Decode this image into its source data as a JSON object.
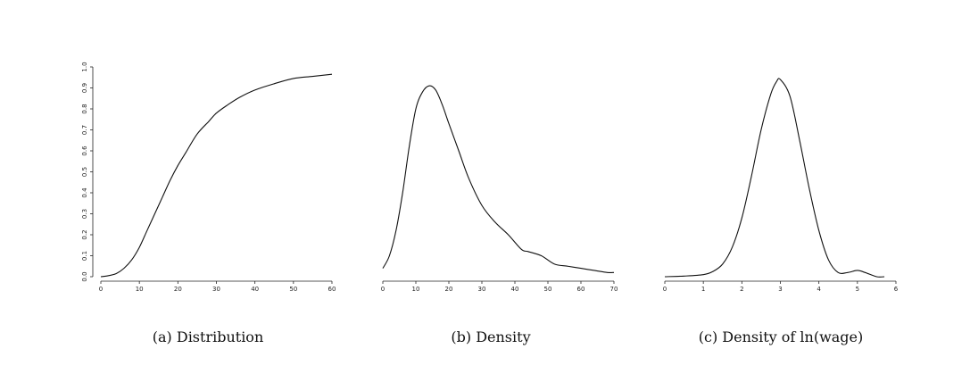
{
  "chart_data": [
    {
      "type": "line",
      "caption": "(a) Distribution",
      "xlim": [
        0,
        60
      ],
      "ylim": [
        0,
        1.0
      ],
      "x_ticks": [
        "0",
        "10",
        "20",
        "30",
        "40",
        "50",
        "60"
      ],
      "y_ticks": [
        "0.0",
        "0.1",
        "0.2",
        "0.3",
        "0.4",
        "0.5",
        "0.6",
        "0.7",
        "0.8",
        "0.9",
        "1.0"
      ],
      "series": [
        {
          "x": [
            0,
            2,
            4,
            6,
            8,
            10,
            12,
            14,
            16,
            18,
            20,
            22,
            25,
            28,
            30,
            33,
            36,
            40,
            45,
            50,
            55,
            60
          ],
          "y": [
            0.0,
            0.005,
            0.015,
            0.04,
            0.08,
            0.14,
            0.22,
            0.3,
            0.38,
            0.46,
            0.53,
            0.59,
            0.68,
            0.74,
            0.78,
            0.82,
            0.855,
            0.89,
            0.92,
            0.945,
            0.955,
            0.965
          ]
        }
      ]
    },
    {
      "type": "line",
      "caption": "(b) Density",
      "xlim": [
        0,
        70
      ],
      "x_ticks": [
        "0",
        "10",
        "20",
        "30",
        "40",
        "50",
        "60",
        "70"
      ],
      "y_ticks": [],
      "ylim": [
        0,
        1.0
      ],
      "series": [
        {
          "x": [
            0,
            2,
            4,
            6,
            8,
            10,
            12,
            14,
            16,
            18,
            20,
            23,
            26,
            30,
            34,
            38,
            42,
            44,
            48,
            52,
            56,
            60,
            64,
            68,
            70
          ],
          "y": [
            0.04,
            0.1,
            0.22,
            0.4,
            0.62,
            0.8,
            0.88,
            0.91,
            0.89,
            0.82,
            0.73,
            0.6,
            0.47,
            0.34,
            0.26,
            0.2,
            0.13,
            0.12,
            0.1,
            0.06,
            0.05,
            0.04,
            0.03,
            0.02,
            0.02
          ]
        }
      ]
    },
    {
      "type": "line",
      "caption_prefix": "(c) Density of",
      "caption_ln": "ln",
      "caption_suffix": "(wage)",
      "xlim": [
        0,
        6
      ],
      "x_ticks": [
        "0",
        "1",
        "2",
        "3",
        "4",
        "5",
        "6"
      ],
      "y_ticks": [],
      "ylim": [
        0,
        1.0
      ],
      "series": [
        {
          "x": [
            0,
            0.5,
            1.0,
            1.25,
            1.5,
            1.75,
            2.0,
            2.25,
            2.5,
            2.75,
            2.9,
            3.0,
            3.25,
            3.5,
            3.75,
            4.0,
            4.25,
            4.5,
            4.75,
            5.0,
            5.2,
            5.5,
            5.7
          ],
          "y": [
            0.0,
            0.003,
            0.01,
            0.025,
            0.06,
            0.14,
            0.28,
            0.48,
            0.7,
            0.87,
            0.93,
            0.94,
            0.86,
            0.65,
            0.42,
            0.22,
            0.08,
            0.02,
            0.02,
            0.03,
            0.02,
            0.0,
            0.0
          ]
        }
      ]
    }
  ]
}
